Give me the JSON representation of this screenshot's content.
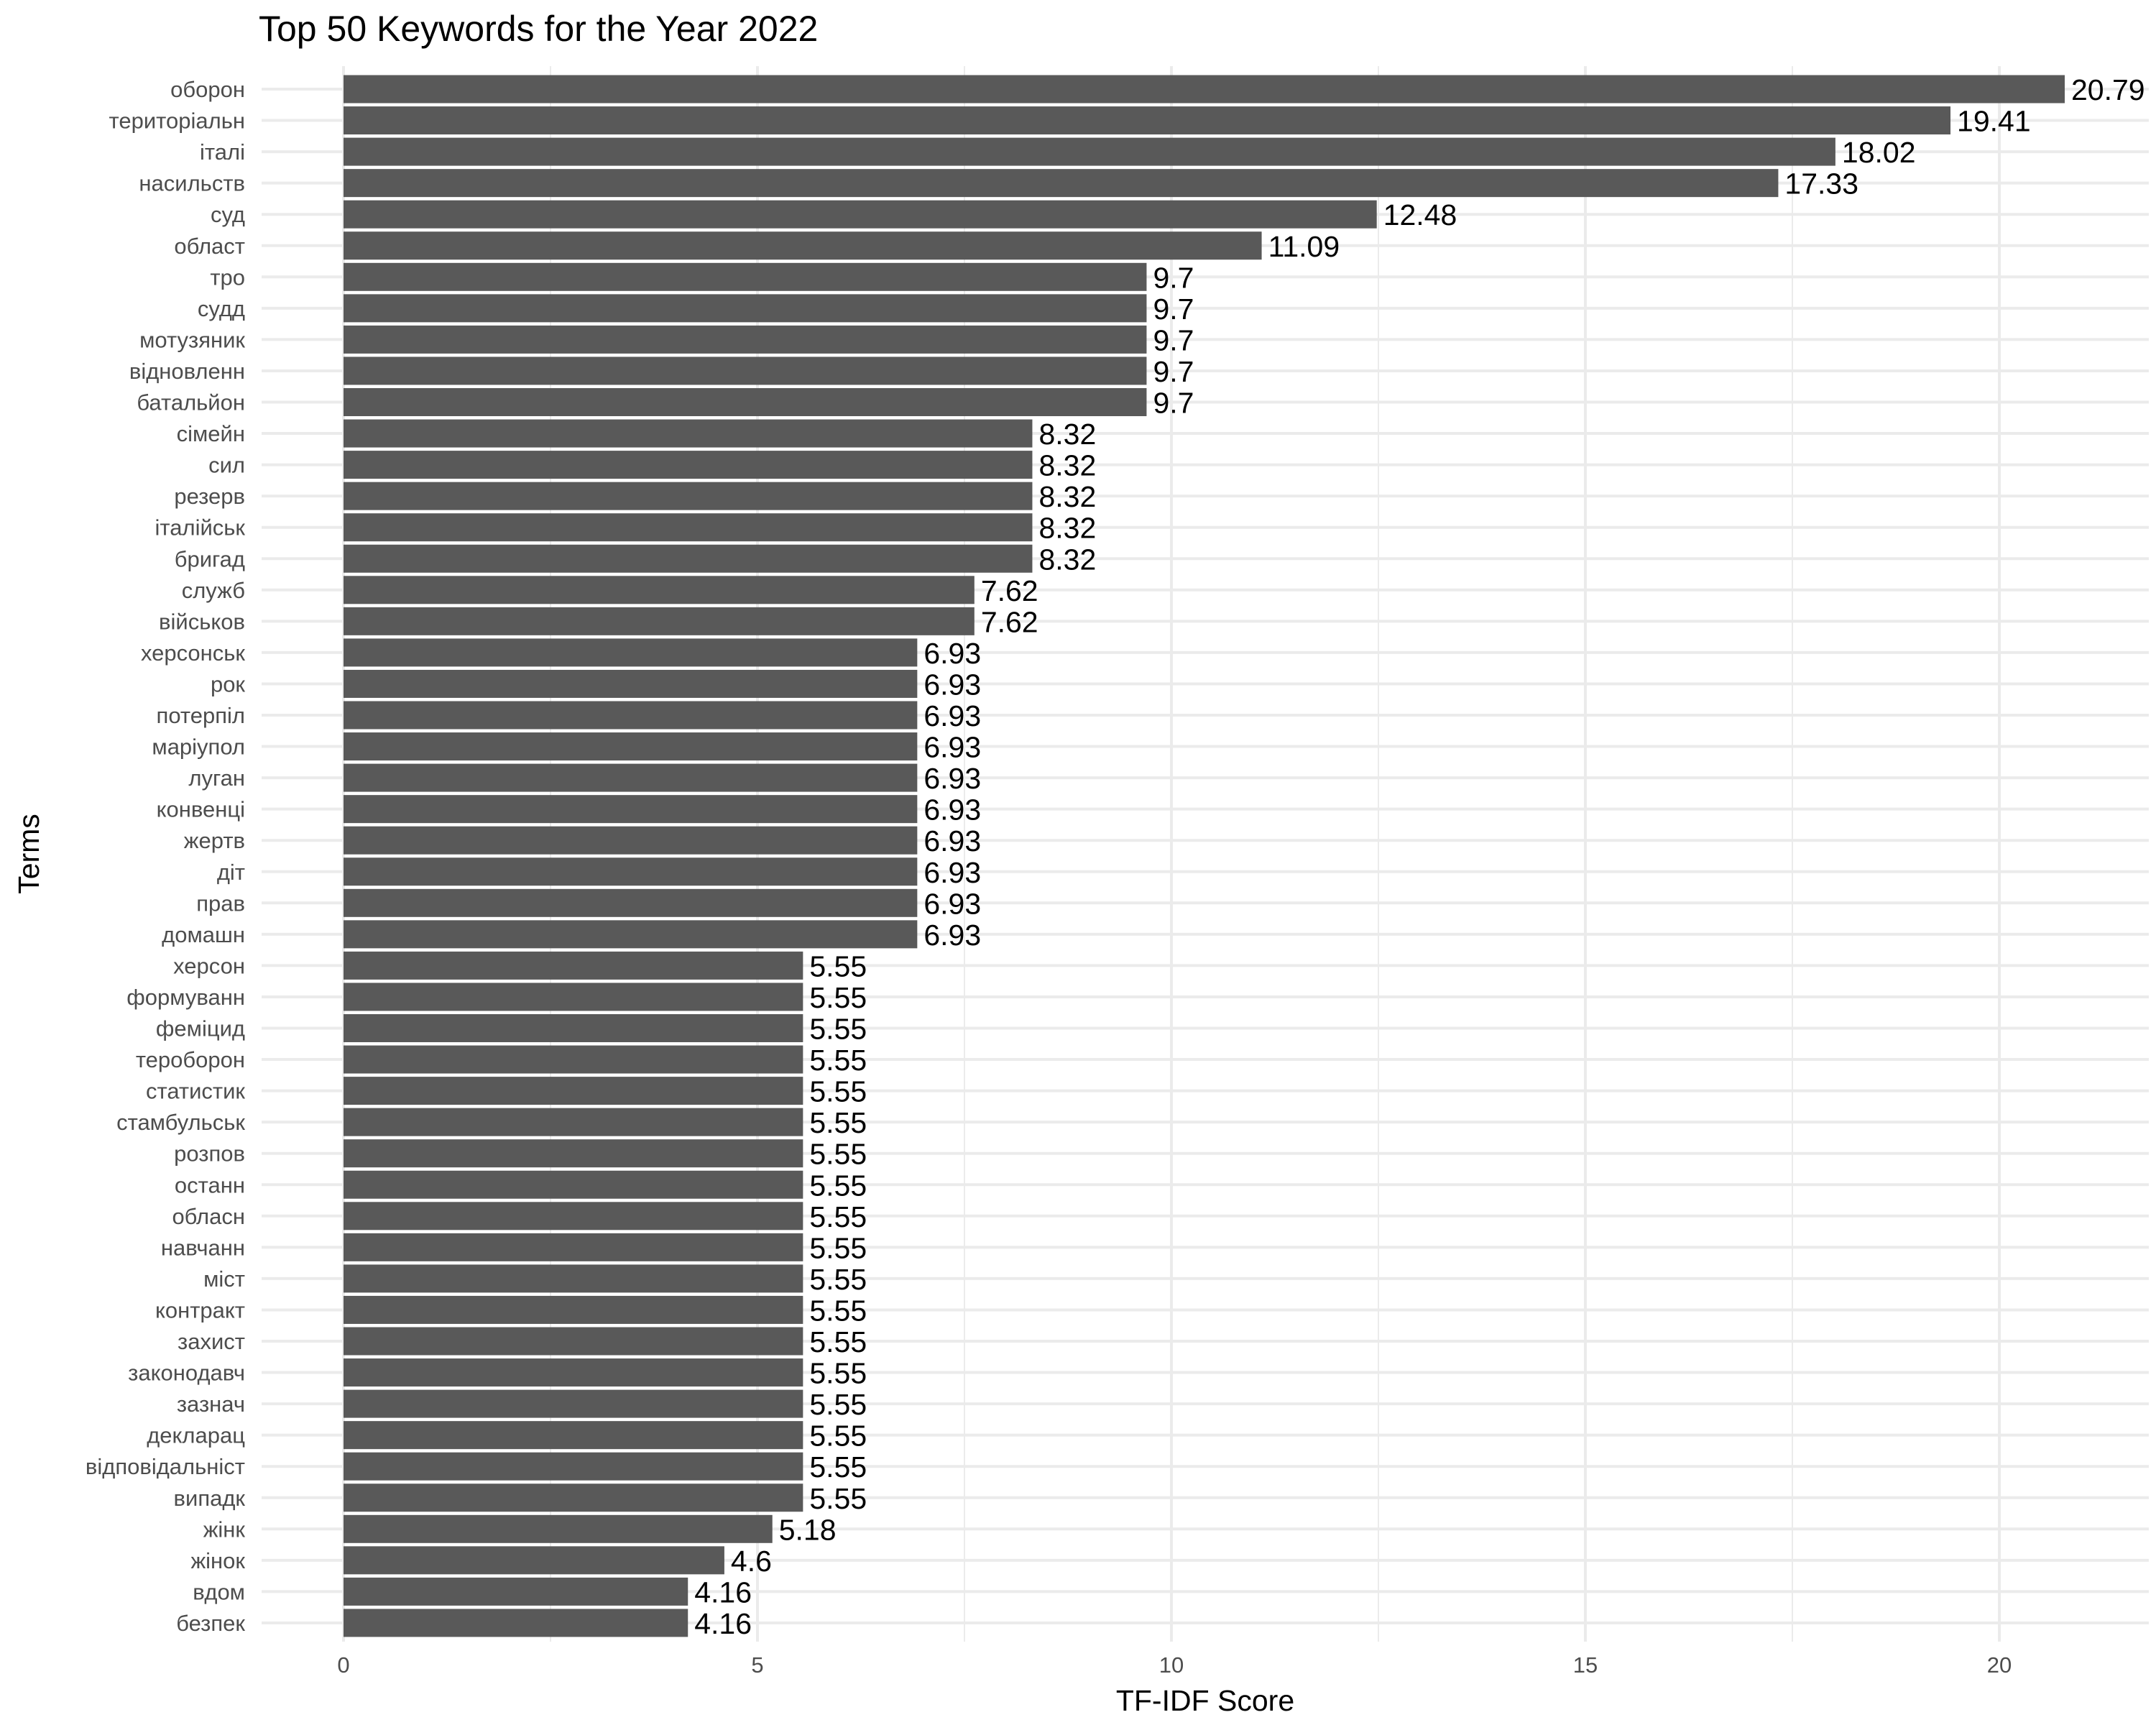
{
  "chart_data": {
    "type": "bar",
    "orientation": "horizontal",
    "title": "Top 50 Keywords for the Year 2022",
    "xlabel": "TF-IDF Score",
    "ylabel": "Terms",
    "xlim": [
      0,
      22
    ],
    "x_ticks": [
      0,
      5,
      10,
      15,
      20
    ],
    "grid": true,
    "bar_color": "#595959",
    "categories": [
      "оборон",
      "територіальн",
      "італі",
      "насильств",
      "суд",
      "област",
      "тро",
      "судд",
      "мотузяник",
      "відновленн",
      "батальйон",
      "сімейн",
      "сил",
      "резерв",
      "італійськ",
      "бригад",
      "служб",
      "військов",
      "херсонськ",
      "рок",
      "потерпіл",
      "маріупол",
      "луган",
      "конвенці",
      "жертв",
      "діт",
      "прав",
      "домашн",
      "херсон",
      "формуванн",
      "феміцид",
      "тероборон",
      "статистик",
      "стамбульськ",
      "розпов",
      "останн",
      "обласн",
      "навчанн",
      "міст",
      "контракт",
      "захист",
      "законодавч",
      "зазнач",
      "декларац",
      "відповідальніст",
      "випадк",
      "жінк",
      "жінок",
      "вдом",
      "безпек"
    ],
    "values": [
      20.79,
      19.41,
      18.02,
      17.33,
      12.48,
      11.09,
      9.7,
      9.7,
      9.7,
      9.7,
      9.7,
      8.32,
      8.32,
      8.32,
      8.32,
      8.32,
      7.62,
      7.62,
      6.93,
      6.93,
      6.93,
      6.93,
      6.93,
      6.93,
      6.93,
      6.93,
      6.93,
      6.93,
      5.55,
      5.55,
      5.55,
      5.55,
      5.55,
      5.55,
      5.55,
      5.55,
      5.55,
      5.55,
      5.55,
      5.55,
      5.55,
      5.55,
      5.55,
      5.55,
      5.55,
      5.55,
      5.18,
      4.6,
      4.16,
      4.16
    ]
  }
}
